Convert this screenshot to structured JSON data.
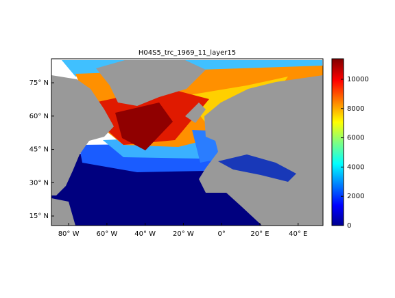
{
  "title": "H04S5_trc_1969_11_layer15",
  "map": {
    "lonlim": [
      -89,
      53
    ],
    "latlim": [
      10.7,
      85.8
    ],
    "lon_ticks": [
      {
        "value": -80,
        "label": "80° W"
      },
      {
        "value": -60,
        "label": "60° W"
      },
      {
        "value": -40,
        "label": "40° W"
      },
      {
        "value": -20,
        "label": "20° W"
      },
      {
        "value": 0,
        "label": "0°"
      },
      {
        "value": 20,
        "label": "20° E"
      },
      {
        "value": 40,
        "label": "40° E"
      }
    ],
    "lat_ticks": [
      {
        "value": 15,
        "label": "15° N"
      },
      {
        "value": 30,
        "label": "30° N"
      },
      {
        "value": 45,
        "label": "45° N"
      },
      {
        "value": 60,
        "label": "60° N"
      },
      {
        "value": 75,
        "label": "75° N"
      }
    ]
  },
  "colorbar": {
    "lim": [
      0,
      11400
    ],
    "ticks": [
      0,
      2000,
      4000,
      6000,
      8000,
      10000
    ]
  }
}
